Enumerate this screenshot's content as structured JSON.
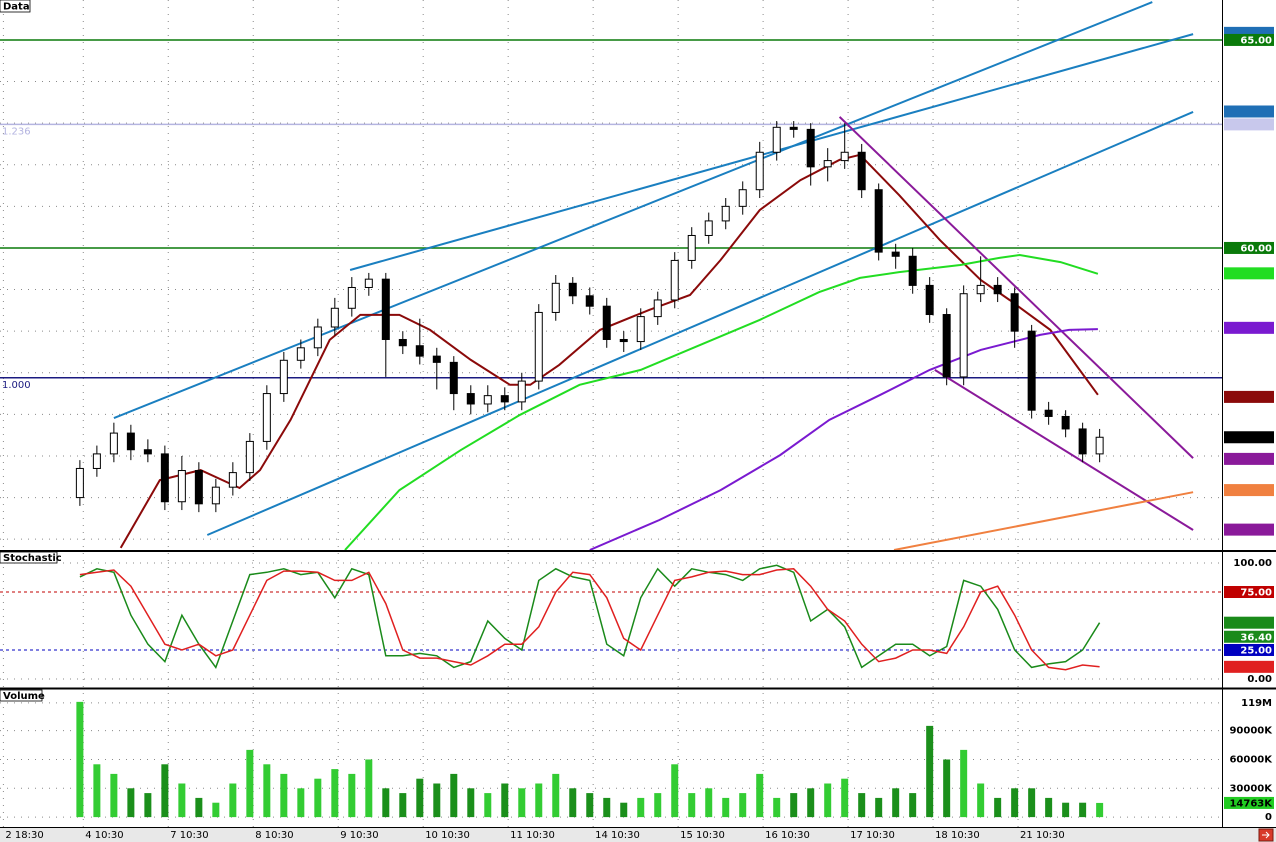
{
  "chart_data": [
    {
      "type": "candlestick",
      "title": "Data",
      "open": [
        54.0,
        54.7,
        55.05,
        55.55,
        55.15,
        55.05,
        53.9,
        54.65,
        53.85,
        54.25,
        54.6,
        55.35,
        56.5,
        57.3,
        57.6,
        58.1,
        58.55,
        59.05,
        59.25,
        57.8,
        57.65,
        57.4,
        57.25,
        56.5,
        56.25,
        56.45,
        56.3,
        56.8,
        58.45,
        59.15,
        58.85,
        58.6,
        57.8,
        57.75,
        58.35,
        58.75,
        59.7,
        60.3,
        60.65,
        61.0,
        61.4,
        62.3,
        62.9,
        62.85,
        61.95,
        62.1,
        62.3,
        61.4,
        59.9,
        59.8,
        59.1,
        58.4,
        56.9,
        58.9,
        59.1,
        58.9,
        58.0,
        56.1,
        55.95,
        55.65,
        55.05
      ],
      "high": [
        54.9,
        55.25,
        55.8,
        55.75,
        55.4,
        55.25,
        55.0,
        54.85,
        54.45,
        54.85,
        55.55,
        56.7,
        57.5,
        57.8,
        58.3,
        58.8,
        59.3,
        59.4,
        59.4,
        58.0,
        58.3,
        57.6,
        57.4,
        56.7,
        56.7,
        56.65,
        57.0,
        58.65,
        59.35,
        59.3,
        59.05,
        58.8,
        58.0,
        58.55,
        58.95,
        59.9,
        60.5,
        60.85,
        61.2,
        61.6,
        62.55,
        63.05,
        63.05,
        63.0,
        62.4,
        63.0,
        62.5,
        61.55,
        60.1,
        60.0,
        59.3,
        58.55,
        59.1,
        59.8,
        59.3,
        59.05,
        58.15,
        56.3,
        56.1,
        55.8,
        55.65
      ],
      "low": [
        53.8,
        54.5,
        54.85,
        54.9,
        54.85,
        53.7,
        53.7,
        53.65,
        53.65,
        54.05,
        54.4,
        55.15,
        56.3,
        57.1,
        57.4,
        57.9,
        58.35,
        58.85,
        56.9,
        57.45,
        57.2,
        56.6,
        56.1,
        56.0,
        56.05,
        56.1,
        56.1,
        56.6,
        58.25,
        58.65,
        58.4,
        57.6,
        57.5,
        57.55,
        58.15,
        58.55,
        59.5,
        60.1,
        60.45,
        60.8,
        61.2,
        62.1,
        62.65,
        61.5,
        61.6,
        61.9,
        61.2,
        59.7,
        59.5,
        58.9,
        58.2,
        56.7,
        56.7,
        58.7,
        58.7,
        57.6,
        55.9,
        55.75,
        55.45,
        54.85,
        54.85
      ],
      "close": [
        54.7,
        55.05,
        55.55,
        55.15,
        55.05,
        53.9,
        54.65,
        53.85,
        54.25,
        54.6,
        55.35,
        56.5,
        57.3,
        57.6,
        58.1,
        58.55,
        59.05,
        59.25,
        57.8,
        57.65,
        57.4,
        57.25,
        56.5,
        56.25,
        56.45,
        56.3,
        56.8,
        58.45,
        59.15,
        58.85,
        58.6,
        57.8,
        57.75,
        58.35,
        58.75,
        59.7,
        60.3,
        60.65,
        61.0,
        61.4,
        62.3,
        62.9,
        62.85,
        61.95,
        62.1,
        62.3,
        61.4,
        59.9,
        59.8,
        59.1,
        58.4,
        56.9,
        58.9,
        59.1,
        58.9,
        58.0,
        56.1,
        55.95,
        55.65,
        55.05,
        55.45
      ],
      "up_color": "#ffffff",
      "down_color": "#000000",
      "xlim": [
        -4.7,
        67.2
      ],
      "xticks": [
        {
          "value": -4.5,
          "label": "2 18:30"
        },
        {
          "value": 0.2,
          "label": "4 10:30"
        },
        {
          "value": 5.2,
          "label": "7 10:30"
        },
        {
          "value": 10.2,
          "label": "8 10:30"
        },
        {
          "value": 15.2,
          "label": "9 10:30"
        },
        {
          "value": 20.2,
          "label": "10 10:30"
        },
        {
          "value": 25.2,
          "label": "11 10:30"
        },
        {
          "value": 30.2,
          "label": "14 10:30"
        },
        {
          "value": 35.2,
          "label": "15 10:30"
        },
        {
          "value": 40.2,
          "label": "16 10:30"
        },
        {
          "value": 45.2,
          "label": "17 10:30"
        },
        {
          "value": 50.2,
          "label": "18 10:30"
        },
        {
          "value": 55.2,
          "label": "21 10:30"
        }
      ],
      "ylim": [
        52.74,
        65.96
      ],
      "grid_lines": [
        53,
        54,
        55,
        56,
        57,
        58,
        59,
        60,
        61,
        62,
        63,
        64,
        65
      ],
      "lines": [
        {
          "color": "#8b0a0a",
          "x": [
            2.4,
            4.7,
            7.1,
            9.4,
            10.6,
            12.4,
            14.7,
            16.5,
            18.8,
            20.6,
            23.0,
            25.3,
            26.5,
            28.2,
            30.6,
            33.5,
            35.9,
            37.7,
            40.0,
            42.4,
            44.7,
            45.9,
            48.2,
            50.6,
            53.0,
            54.7,
            57.1,
            59.9
          ],
          "values": [
            52.79,
            54.42,
            54.66,
            54.23,
            54.66,
            55.87,
            57.79,
            58.39,
            58.39,
            58.03,
            57.31,
            56.71,
            56.71,
            57.19,
            58.03,
            58.51,
            58.87,
            59.71,
            60.91,
            61.63,
            62.12,
            62.24,
            61.27,
            60.19,
            59.23,
            58.75,
            58.03,
            56.47
          ]
        },
        {
          "color": "#22dd22",
          "x": [
            15.6,
            18.8,
            22.4,
            25.9,
            29.4,
            33.0,
            36.5,
            40.0,
            43.5,
            45.9,
            48.2,
            51.8,
            54.1,
            55.3,
            57.7,
            59.9
          ],
          "values": [
            52.74,
            54.18,
            55.14,
            55.99,
            56.71,
            57.07,
            57.67,
            58.27,
            58.94,
            59.28,
            59.42,
            59.59,
            59.76,
            59.83,
            59.66,
            59.38
          ]
        },
        {
          "color": "#7a1ad0",
          "x": [
            30.0,
            34.1,
            37.7,
            41.2,
            44.1,
            47.1,
            50.0,
            53.0,
            56.5,
            58.2,
            59.9
          ],
          "values": [
            52.74,
            53.46,
            54.18,
            55.02,
            55.87,
            56.47,
            57.07,
            57.55,
            57.91,
            58.03,
            58.05
          ]
        }
      ],
      "segments": [
        {
          "color": "#1a7fc0",
          "x": [
            2.0,
            63.1
          ],
          "values": [
            55.91,
            65.91
          ]
        },
        {
          "color": "#1a7fc0",
          "x": [
            15.9,
            65.5
          ],
          "values": [
            59.47,
            65.14
          ]
        },
        {
          "color": "#1a7fc0",
          "x": [
            7.5,
            65.5
          ],
          "values": [
            53.1,
            63.27
          ]
        },
        {
          "color": "#8a1a9a",
          "x": [
            44.7,
            65.5
          ],
          "values": [
            63.15,
            54.95
          ]
        },
        {
          "color": "#8a1a9a",
          "x": [
            50.3,
            65.5
          ],
          "values": [
            57.07,
            53.22
          ]
        },
        {
          "color": "#f08040",
          "x": [
            47.9,
            65.5
          ],
          "values": [
            52.74,
            54.13
          ]
        }
      ],
      "levels": [
        {
          "value": 65,
          "color": "#0a7a0a"
        },
        {
          "value": 60,
          "color": "#0a7a0a"
        },
        {
          "value": 62.97,
          "label": "1.236",
          "color": "#b4b4e0"
        },
        {
          "value": 56.88,
          "label": "1.000",
          "color": "#1a1a80"
        }
      ],
      "price_markers": [
        {
          "value": 65.17,
          "color": "#1f6fb5",
          "text_color": "#ffffff"
        },
        {
          "value": 65,
          "label": "65.00",
          "color": "#0a7a0a",
          "text_color": "#ffffff"
        },
        {
          "value": 63.28,
          "color": "#1f6fb5",
          "text_color": "#ffffff"
        },
        {
          "value": 62.97,
          "color": "#c8c8ec",
          "text_color": "#202040"
        },
        {
          "value": 60,
          "label": "60.00",
          "color": "#0a7a0a",
          "text_color": "#ffffff"
        },
        {
          "value": 59.39,
          "color": "#22dd22",
          "text_color": "#ffffff"
        },
        {
          "value": 58.08,
          "color": "#7a1ad0",
          "text_color": "#ffffff"
        },
        {
          "value": 56.42,
          "color": "#8b0a0a",
          "text_color": "#ffffff"
        },
        {
          "value": 55.45,
          "color": "#000000",
          "text_color": "#ffffff"
        },
        {
          "value": 54.93,
          "color": "#8a1a9a",
          "text_color": "#ffffff"
        },
        {
          "value": 54.18,
          "color": "#f08040",
          "text_color": "#ffffff"
        },
        {
          "value": 53.23,
          "color": "#8a1a9a",
          "text_color": "#ffffff"
        }
      ]
    },
    {
      "type": "line",
      "title": "Stochastic",
      "series": [
        {
          "color": "#1a8a1a",
          "values": [
            88,
            95,
            92,
            55,
            30,
            15,
            55,
            30,
            10,
            50,
            90,
            92,
            95,
            90,
            92,
            70,
            95,
            90,
            20,
            20,
            22,
            20,
            10,
            15,
            50,
            35,
            25,
            85,
            95,
            88,
            85,
            30,
            20,
            70,
            95,
            80,
            95,
            92,
            90,
            85,
            95,
            98,
            92,
            50,
            60,
            45,
            10,
            20,
            30,
            30,
            20,
            28,
            85,
            80,
            60,
            25,
            10,
            13,
            15,
            25,
            48.53
          ]
        },
        {
          "color": "#e02020",
          "values": [
            90,
            92,
            94,
            80,
            55,
            30,
            25,
            30,
            20,
            25,
            55,
            85,
            93,
            93,
            92,
            85,
            85,
            92,
            65,
            25,
            18,
            18,
            15,
            12,
            20,
            30,
            30,
            45,
            75,
            92,
            90,
            70,
            35,
            25,
            55,
            85,
            88,
            92,
            93,
            90,
            90,
            94,
            95,
            80,
            60,
            50,
            30,
            15,
            18,
            25,
            25,
            22,
            45,
            75,
            80,
            55,
            25,
            10,
            8,
            12,
            10.45
          ]
        }
      ],
      "ylim": [
        -7.8,
        109.5
      ],
      "yticks": [
        {
          "value": 100,
          "label": "100.00"
        },
        {
          "value": 0,
          "label": "0.00"
        }
      ],
      "levels": [
        {
          "value": 75,
          "label": "75.00",
          "color": "#c00000"
        },
        {
          "value": 25,
          "label": "25.00",
          "color": "#0000c0"
        }
      ],
      "price_markers": [
        {
          "value": 48.53,
          "color": "#1a8a1a",
          "text_color": "#ffffff"
        },
        {
          "value": 36.4,
          "label": "36.40",
          "color": "#1a8a1a",
          "text_color": "#ffffff"
        },
        {
          "value": 10.45,
          "color": "#e02020",
          "text_color": "#ffffff"
        }
      ]
    },
    {
      "type": "bar",
      "title": "Volume",
      "values": [
        120000,
        55000,
        45000,
        30000,
        25000,
        55000,
        35000,
        20000,
        15000,
        35000,
        70000,
        55000,
        45000,
        30000,
        40000,
        50000,
        45000,
        60000,
        30000,
        25000,
        40000,
        35000,
        45000,
        30000,
        25000,
        35000,
        30000,
        35000,
        45000,
        30000,
        25000,
        20000,
        15000,
        20000,
        25000,
        55000,
        25000,
        30000,
        20000,
        25000,
        45000,
        20000,
        25000,
        30000,
        35000,
        40000,
        25000,
        20000,
        30000,
        25000,
        95000,
        60000,
        70000,
        35000,
        20000,
        30000,
        30000,
        20000,
        15000,
        15000,
        14763
      ],
      "up_color": "#33cc33",
      "down_color": "#1b8f1b",
      "ylim": [
        -10300,
        133400
      ],
      "yticks": [
        0,
        {
          "value": 30000,
          "label": "30000K"
        },
        {
          "value": 60000,
          "label": "60000K"
        },
        {
          "value": 90000,
          "label": "90000K"
        },
        {
          "value": 119000,
          "label": "119M"
        }
      ],
      "price_markers": [
        {
          "value": 14763,
          "label": "14763K",
          "color": "#22cc22",
          "text_color": "#000000"
        }
      ]
    }
  ]
}
